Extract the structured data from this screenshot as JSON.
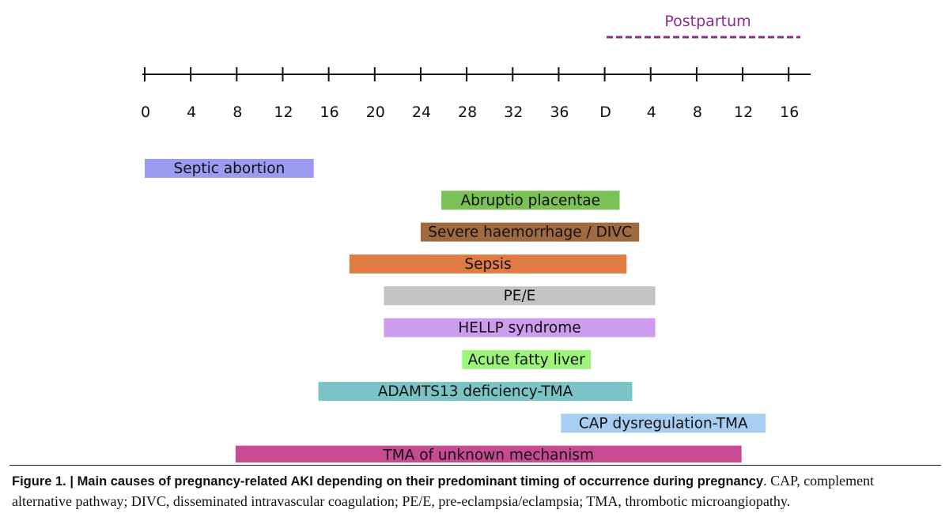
{
  "postpartum": {
    "label": "Postpartum",
    "color": "#8b2a8b"
  },
  "timeline": {
    "ticks": [
      "0",
      "4",
      "8",
      "12",
      "16",
      "20",
      "24",
      "28",
      "32",
      "36",
      "D",
      "4",
      "8",
      "12",
      "16"
    ]
  },
  "bars": [
    {
      "label": "Septic abortion",
      "color": "#9b9bf2",
      "start": 0,
      "end": 14.7
    },
    {
      "label": "Abruptio placentae",
      "color": "#7ac255",
      "start": 25.8,
      "end": 41.3
    },
    {
      "label": "Severe haemorrhage / DIVC",
      "color": "#a06a40",
      "start": 24,
      "end": 43
    },
    {
      "label": "Sepsis",
      "color": "#e07b42",
      "start": 17.8,
      "end": 41.9
    },
    {
      "label": "PE/E",
      "color": "#c4c4c4",
      "start": 20.8,
      "end": 44.4
    },
    {
      "label": "HELLP syndrome",
      "color": "#cc9cef",
      "start": 20.8,
      "end": 44.4
    },
    {
      "label": "Acute fatty liver",
      "color": "#9cf57a",
      "start": 27.6,
      "end": 38.8
    },
    {
      "label": "ADAMTS13 deficiency-TMA",
      "color": "#7ac4c7",
      "start": 15.1,
      "end": 42.4
    },
    {
      "label": "CAP dysregulation-TMA",
      "color": "#a8cdf2",
      "start": 36.2,
      "end": 54
    },
    {
      "label": "TMA of unknown mechanism",
      "color": "#c84a92",
      "start": 7.9,
      "end": 51.9
    }
  ],
  "caption": {
    "prefix": "Figure 1.  |  ",
    "bold": "Main causes of pregnancy-related AKI depending on their predominant timing of occurrence during pregnancy",
    "rest_line1": ". CAP, complement",
    "line2": "alternative pathway; DIVC, disseminated intravascular coagulation; PE/E, pre-eclampsia/eclampsia; TMA, thrombotic microangiopathy."
  }
}
